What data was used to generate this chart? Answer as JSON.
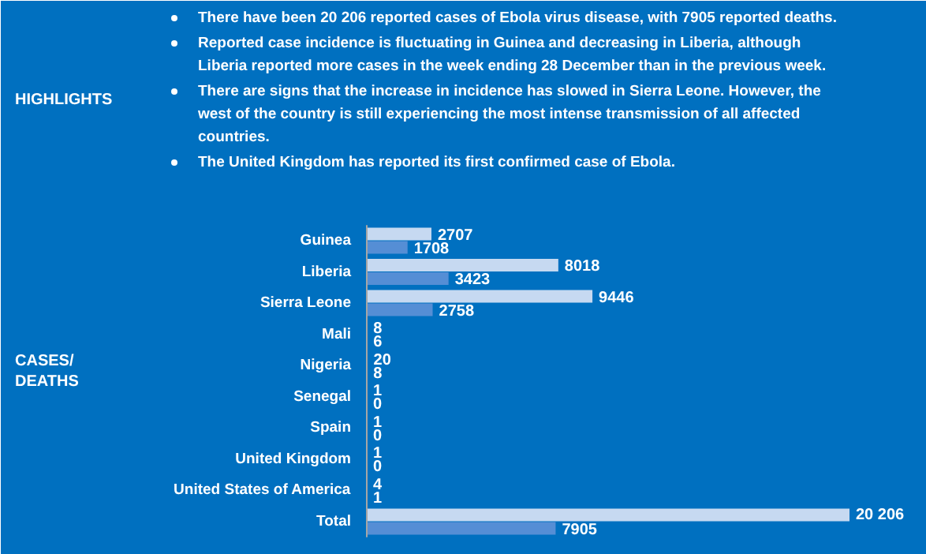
{
  "chart_data": {
    "type": "bar",
    "orientation": "horizontal",
    "title": "HIGHLIGHTS",
    "annotations": [
      "There have been 20 206 reported cases of Ebola virus disease, with 7905 reported deaths.",
      "Reported case incidence is fluctuating in Guinea and decreasing in Liberia, although Liberia reported more cases in the week ending 28 December than in the previous week.",
      "There are signs that the increase in incidence has slowed in Sierra Leone. However, the west of the country is still experiencing the most intense transmission of all affected countries.",
      "The United Kingdom has reported its first confirmed case of Ebola.",
      "CASES/\nDEATHS"
    ],
    "categories": [
      "Guinea",
      "Liberia",
      "Sierra Leone",
      "Mali",
      "Nigeria",
      "Senegal",
      "Spain",
      "United Kingdom",
      "United States of America",
      "Total"
    ],
    "series": [
      {
        "color": "#c6d9f1",
        "values": [
          2707,
          8018,
          9446,
          8,
          20,
          1,
          1,
          1,
          4,
          20206
        ],
        "value_labels": [
          "2707",
          "8018",
          "9446",
          "8",
          "20",
          "1",
          "1",
          "1",
          "4",
          "20 206"
        ]
      },
      {
        "color": "#558ed5",
        "values": [
          1708,
          3423,
          2758,
          6,
          8,
          0,
          0,
          0,
          1,
          7905
        ],
        "value_labels": [
          "1708",
          "3423",
          "2758",
          "6",
          "8",
          "0",
          "0",
          "0",
          "1",
          "7905"
        ]
      }
    ]
  }
}
